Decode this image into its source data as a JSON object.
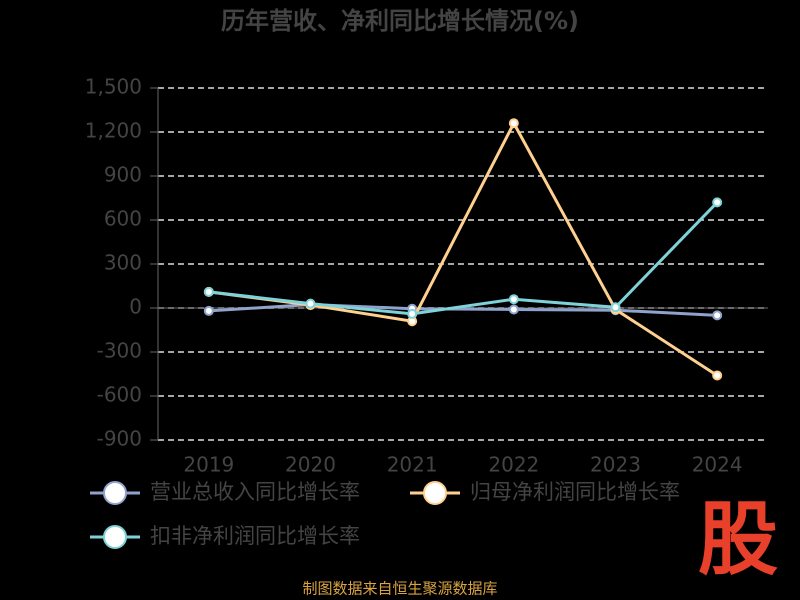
{
  "chart_data": {
    "type": "line",
    "title": "历年营收、净利同比增长情况(%)",
    "categories": [
      "2019",
      "2020",
      "2021",
      "2022",
      "2023",
      "2024"
    ],
    "series": [
      {
        "name": "营业总收入同比增长率",
        "color": "#8fa3cc",
        "values": [
          -20,
          24,
          -5,
          -10,
          -15,
          -50
        ]
      },
      {
        "name": "归母净利润同比增长率",
        "color": "#ffd08f",
        "values": [
          110,
          20,
          -90,
          1260,
          -10,
          -460
        ]
      },
      {
        "name": "扣非净利润同比增长率",
        "color": "#7fd3d8",
        "values": [
          110,
          30,
          -40,
          60,
          5,
          720
        ]
      }
    ],
    "ylim": [
      -900,
      1500
    ],
    "yticks": [
      -900,
      -600,
      -300,
      0,
      300,
      600,
      900,
      {
        "value": 1200,
        "label": "1,200"
      },
      {
        "value": 1500,
        "label": "1,500"
      }
    ],
    "grid": true,
    "source": "制图数据来自恒生聚源数据库",
    "logo": "股"
  }
}
